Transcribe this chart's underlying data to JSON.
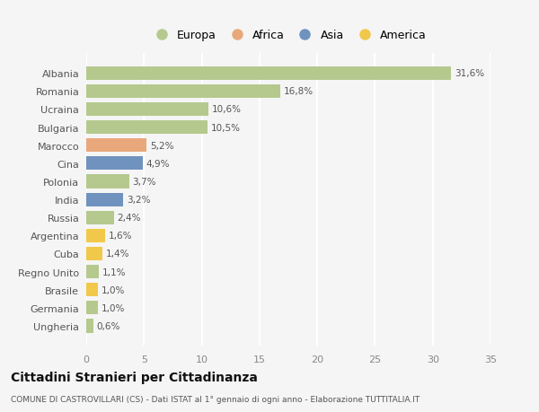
{
  "countries": [
    "Albania",
    "Romania",
    "Ucraina",
    "Bulgaria",
    "Marocco",
    "Cina",
    "Polonia",
    "India",
    "Russia",
    "Argentina",
    "Cuba",
    "Regno Unito",
    "Brasile",
    "Germania",
    "Ungheria"
  ],
  "values": [
    31.6,
    16.8,
    10.6,
    10.5,
    5.2,
    4.9,
    3.7,
    3.2,
    2.4,
    1.6,
    1.4,
    1.1,
    1.0,
    1.0,
    0.6
  ],
  "labels": [
    "31,6%",
    "16,8%",
    "10,6%",
    "10,5%",
    "5,2%",
    "4,9%",
    "3,7%",
    "3,2%",
    "2,4%",
    "1,6%",
    "1,4%",
    "1,1%",
    "1,0%",
    "1,0%",
    "0,6%"
  ],
  "continents": [
    "Europa",
    "Europa",
    "Europa",
    "Europa",
    "Africa",
    "Asia",
    "Europa",
    "Asia",
    "Europa",
    "America",
    "America",
    "Europa",
    "America",
    "Europa",
    "Europa"
  ],
  "colors": {
    "Europa": "#b5c98e",
    "Africa": "#e8a87c",
    "Asia": "#7092be",
    "America": "#f2c84b"
  },
  "xlim": [
    0,
    35
  ],
  "xticks": [
    0,
    5,
    10,
    15,
    20,
    25,
    30,
    35
  ],
  "background_color": "#f5f5f5",
  "grid_color": "#ffffff",
  "title": "Cittadini Stranieri per Cittadinanza",
  "subtitle": "COMUNE DI CASTROVILLARI (CS) - Dati ISTAT al 1° gennaio di ogni anno - Elaborazione TUTTITALIA.IT",
  "legend_order": [
    "Europa",
    "Africa",
    "Asia",
    "America"
  ]
}
